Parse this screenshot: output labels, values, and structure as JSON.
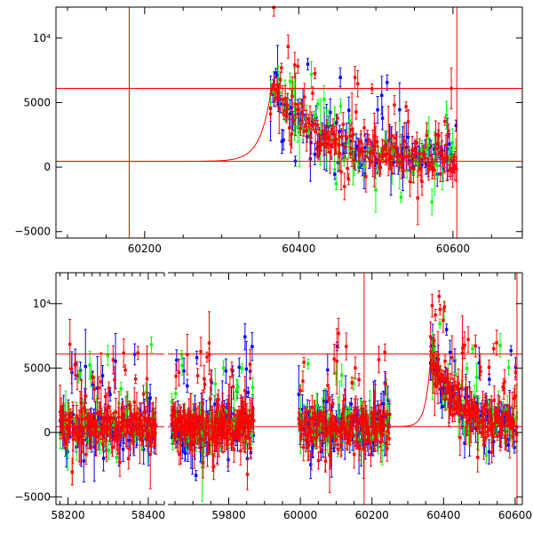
{
  "colors": {
    "red": "#ff0000",
    "blue": "#0000ff",
    "green": "#00ff00",
    "frame": "#000000"
  },
  "chart_data": [
    {
      "type": "scatter",
      "title": "",
      "xlabel": "",
      "ylabel": "",
      "xlim": [
        60085,
        60690
      ],
      "ylim": [
        -5500,
        12400
      ],
      "xticks": [
        60200,
        60400,
        60600
      ],
      "yticks": [
        {
          "value": -5000,
          "label": "−5000"
        },
        {
          "value": 0,
          "label": "0"
        },
        {
          "value": 5000,
          "label": "5000"
        },
        {
          "value": 10000,
          "label": "10⁴"
        }
      ],
      "hlines": [
        6100,
        450
      ],
      "vlines": [
        60180,
        60605
      ],
      "model_curve": {
        "baseline": 450,
        "peak": 6300,
        "peak_x": 60365,
        "rise_scale": 14,
        "decay_scale": 60
      },
      "series": [
        {
          "color": "blue",
          "segments": [
            {
              "start": 60363,
              "end": 60605,
              "n": 120,
              "seed": 11
            }
          ]
        },
        {
          "color": "green",
          "segments": [
            {
              "start": 60363,
              "end": 60605,
              "n": 80,
              "seed": 23
            }
          ]
        },
        {
          "color": "red",
          "segments": [
            {
              "start": 60363,
              "end": 60605,
              "n": 170,
              "seed": 37
            }
          ]
        }
      ]
    },
    {
      "type": "scatter",
      "title": "",
      "xlabel": "",
      "ylabel": "",
      "broken_axis": true,
      "panels": [
        {
          "xlim": [
            58170,
            58440
          ],
          "xticks": [
            58200,
            58400
          ]
        },
        {
          "xlim": [
            59630,
            60620
          ],
          "xticks": [
            59800,
            60000,
            60200,
            60400,
            60600
          ]
        }
      ],
      "ylim": [
        -5600,
        12400
      ],
      "yticks": [
        {
          "value": -5000,
          "label": "−5000"
        },
        {
          "value": 0,
          "label": "0"
        },
        {
          "value": 5000,
          "label": "5000"
        },
        {
          "value": 10000,
          "label": "10⁴"
        }
      ],
      "hlines": [
        6100,
        450
      ],
      "vlines": [
        60178,
        60605
      ],
      "model_curve": {
        "baseline": 450,
        "peak": 6300,
        "peak_x": 60365,
        "rise_scale": 14,
        "decay_scale": 60
      },
      "series": [
        {
          "color": "blue",
          "segments": [
            {
              "start": 58180,
              "end": 58420,
              "n": 110,
              "seed": 101
            },
            {
              "start": 59640,
              "end": 59870,
              "n": 120,
              "seed": 102
            },
            {
              "start": 59995,
              "end": 60250,
              "n": 110,
              "seed": 103
            },
            {
              "start": 60363,
              "end": 60605,
              "n": 100,
              "seed": 104
            }
          ]
        },
        {
          "color": "green",
          "segments": [
            {
              "start": 58180,
              "end": 58420,
              "n": 70,
              "seed": 201
            },
            {
              "start": 59640,
              "end": 59870,
              "n": 70,
              "seed": 202
            },
            {
              "start": 59995,
              "end": 60250,
              "n": 70,
              "seed": 203
            },
            {
              "start": 60363,
              "end": 60605,
              "n": 60,
              "seed": 204
            }
          ]
        },
        {
          "color": "red",
          "segments": [
            {
              "start": 58180,
              "end": 58420,
              "n": 170,
              "seed": 301
            },
            {
              "start": 59640,
              "end": 59870,
              "n": 170,
              "seed": 302
            },
            {
              "start": 59995,
              "end": 60250,
              "n": 160,
              "seed": 303
            },
            {
              "start": 60363,
              "end": 60605,
              "n": 150,
              "seed": 304
            }
          ]
        }
      ]
    }
  ]
}
